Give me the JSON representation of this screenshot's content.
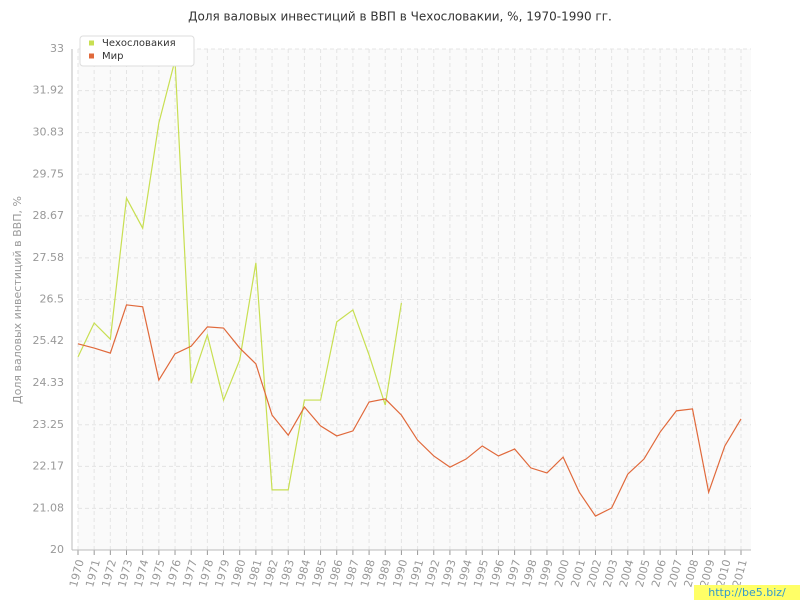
{
  "chart_data": {
    "type": "line",
    "title": "Доля валовых инвестиций в ВВП в Чехословакии, %, 1970-1990 гг.",
    "y_label": "Доля валовых инвестиций в ВВП, %",
    "categories": [
      "1970",
      "1971",
      "1972",
      "1973",
      "1974",
      "1975",
      "1976",
      "1977",
      "1978",
      "1979",
      "1980",
      "1981",
      "1982",
      "1983",
      "1984",
      "1985",
      "1986",
      "1987",
      "1988",
      "1989",
      "1990",
      "1991",
      "1992",
      "1993",
      "1994",
      "1995",
      "1996",
      "1997",
      "1998",
      "1999",
      "2000",
      "2001",
      "2002",
      "2003",
      "2004",
      "2005",
      "2006",
      "2007",
      "2008",
      "2009",
      "2010",
      "2011"
    ],
    "series": [
      {
        "name": "Чехословакия",
        "color": "#c8df52",
        "values": [
          25.01,
          25.89,
          25.47,
          29.13,
          28.35,
          31.08,
          32.71,
          24.33,
          25.58,
          23.89,
          24.93,
          27.45,
          21.56,
          21.56,
          23.89,
          23.89,
          25.92,
          26.23,
          25.06,
          23.76,
          26.41,
          null,
          null,
          null,
          null,
          null,
          null,
          null,
          null,
          null,
          null,
          null,
          null,
          null,
          null,
          null,
          null,
          null,
          null,
          null,
          null,
          null
        ]
      },
      {
        "name": "Мир",
        "color": "#e0693b",
        "values": [
          25.35,
          25.24,
          25.11,
          26.36,
          26.31,
          24.41,
          25.09,
          25.29,
          25.79,
          25.76,
          25.24,
          24.83,
          23.5,
          22.98,
          23.71,
          23.22,
          22.96,
          23.09,
          23.84,
          23.92,
          23.5,
          22.85,
          22.44,
          22.15,
          22.36,
          22.7,
          22.44,
          22.62,
          22.13,
          22.0,
          22.41,
          21.5,
          20.88,
          21.09,
          21.97,
          22.36,
          23.06,
          23.61,
          23.66,
          21.5,
          22.7,
          23.4
        ]
      }
    ],
    "ylim": [
      20,
      33
    ],
    "yticks": [
      20,
      21.08,
      22.17,
      23.25,
      24.33,
      25.42,
      26.5,
      27.58,
      28.67,
      29.75,
      30.83,
      31.92,
      33
    ],
    "grid": true,
    "legend": "top-left",
    "watermark": "http://be5.biz/"
  }
}
